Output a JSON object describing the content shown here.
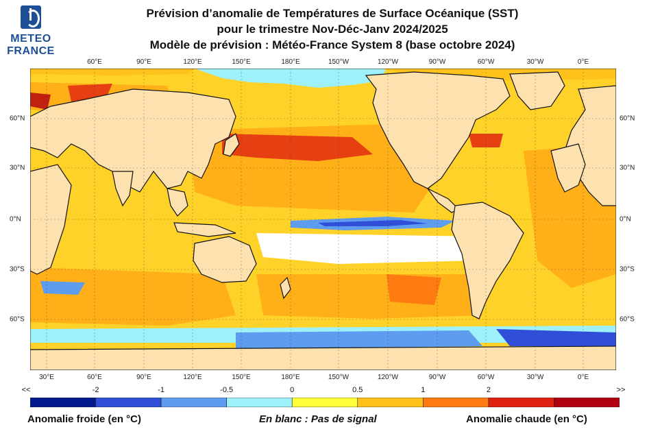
{
  "logo": {
    "line1": "METEO",
    "line2": "FRANCE"
  },
  "title": {
    "line1": "Prévision d’anomalie de Températures de Surface Océanique (SST)",
    "line2": "pour le trimestre Nov-Déc-Janv 2024/2025",
    "line3": "Modèle de prévision : Météo-France System 8 (base octobre 2024)"
  },
  "top_lon_labels": [
    "60°E",
    "90°E",
    "120°E",
    "150°E",
    "180°E",
    "150°W",
    "120°W",
    "90°W",
    "60°W",
    "30°W",
    "0°E"
  ],
  "bottom_lon_labels": [
    "30°E",
    "60°E",
    "90°E",
    "120°E",
    "150°E",
    "180°E",
    "150°W",
    "120°W",
    "90°W",
    "60°W",
    "30°W",
    "0°E"
  ],
  "lat_labels": [
    "60°N",
    "30°N",
    "0°N",
    "30°S",
    "60°S"
  ],
  "colorbar": {
    "colors": [
      "#001a8c",
      "#2f4fd8",
      "#5e9cf0",
      "#9ef0fa",
      "#ffff3a",
      "#ffc21a",
      "#ff7a10",
      "#e02010",
      "#b00010"
    ],
    "tick_labels": [
      "<<",
      "-2",
      "-1",
      "-0.5",
      "0",
      "0.5",
      "1",
      "2",
      ">>"
    ]
  },
  "map": {
    "land_color": "#fde2b0",
    "regions": [
      {
        "name": "central-pacific-cold-tongue",
        "anomaly": "-1"
      },
      {
        "name": "north-pacific-warm-blob",
        "anomaly": "2"
      },
      {
        "name": "southern-ocean-cold-band",
        "anomaly": "-1"
      }
    ]
  },
  "footer": {
    "left": "Anomalie froide (en °C)",
    "center": "En blanc : Pas de signal",
    "right": "Anomalie chaude (en °C)"
  }
}
